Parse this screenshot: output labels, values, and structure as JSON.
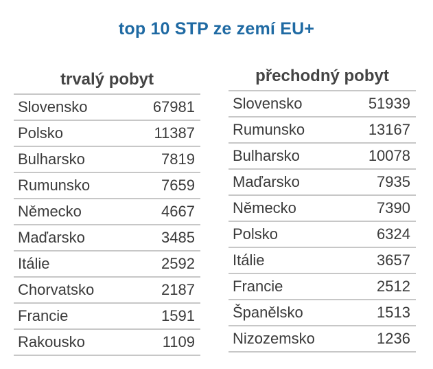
{
  "title": "top 10 STP ze zemí EU+",
  "tables": [
    {
      "header": "trvalý pobyt",
      "rows": [
        {
          "country": "Slovensko",
          "value": "67981"
        },
        {
          "country": "Polsko",
          "value": "11387"
        },
        {
          "country": "Bulharsko",
          "value": "7819"
        },
        {
          "country": "Rumunsko",
          "value": "7659"
        },
        {
          "country": "Německo",
          "value": "4667"
        },
        {
          "country": "Maďarsko",
          "value": "3485"
        },
        {
          "country": "Itálie",
          "value": "2592"
        },
        {
          "country": "Chorvatsko",
          "value": "2187"
        },
        {
          "country": "Francie",
          "value": "1591"
        },
        {
          "country": "Rakousko",
          "value": "1109"
        }
      ]
    },
    {
      "header": "přechodný pobyt",
      "rows": [
        {
          "country": "Slovensko",
          "value": "51939"
        },
        {
          "country": "Rumunsko",
          "value": "13167"
        },
        {
          "country": "Bulharsko",
          "value": "10078"
        },
        {
          "country": "Maďarsko",
          "value": "7935"
        },
        {
          "country": "Německo",
          "value": "7390"
        },
        {
          "country": "Polsko",
          "value": "6324"
        },
        {
          "country": "Itálie",
          "value": "3657"
        },
        {
          "country": "Francie",
          "value": "2512"
        },
        {
          "country": "Španělsko",
          "value": "1513"
        },
        {
          "country": "Nizozemsko",
          "value": "1236"
        }
      ]
    }
  ],
  "colors": {
    "title": "#1f6aa3",
    "header_text": "#444444",
    "body_text": "#3a3a3a",
    "rule": "#c7c7c7"
  }
}
